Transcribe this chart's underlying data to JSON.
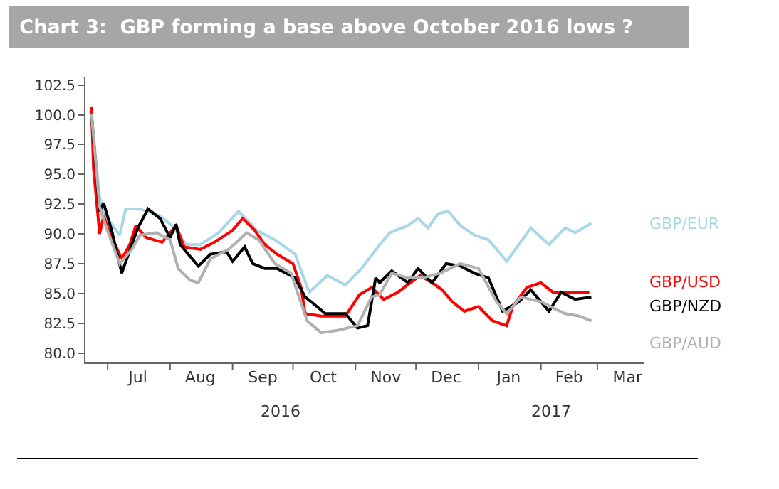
{
  "chart_data": {
    "type": "line",
    "title": "Chart 3:  GBP forming a base above October 2016 lows ?",
    "xlim": [
      "2016-06-20",
      "2017-03-24"
    ],
    "xticks": [
      {
        "value": "2016-07-01",
        "label": null
      },
      {
        "value": "2016-07-16",
        "label": "Jul"
      },
      {
        "value": "2016-08-01",
        "label": null
      },
      {
        "value": "2016-08-16",
        "label": "Aug"
      },
      {
        "value": "2016-09-01",
        "label": null
      },
      {
        "value": "2016-09-16",
        "label": "Sep"
      },
      {
        "value": "2016-10-01",
        "label": null
      },
      {
        "value": "2016-10-16",
        "label": "Oct"
      },
      {
        "value": "2016-11-01",
        "label": null
      },
      {
        "value": "2016-11-16",
        "label": "Nov"
      },
      {
        "value": "2016-12-01",
        "label": null
      },
      {
        "value": "2016-12-16",
        "label": "Dec"
      },
      {
        "value": "2017-01-01",
        "label": null
      },
      {
        "value": "2017-01-16",
        "label": "Jan"
      },
      {
        "value": "2017-02-01",
        "label": null
      },
      {
        "value": "2017-02-15",
        "label": "Feb"
      },
      {
        "value": "2017-03-01",
        "label": null
      },
      {
        "value": "2017-03-16",
        "label": "Mar"
      }
    ],
    "ylim": [
      79.2,
      103.2
    ],
    "yticks": [
      {
        "value": 80,
        "label": "80.0"
      },
      {
        "value": 82.5,
        "label": "82.5"
      },
      {
        "value": 85,
        "label": "85.0"
      },
      {
        "value": 87.5,
        "label": "87.5"
      },
      {
        "value": 90,
        "label": "90.0"
      },
      {
        "value": 92.5,
        "label": "92.5"
      },
      {
        "value": 95,
        "label": "95.0"
      },
      {
        "value": 97.5,
        "label": "97.5"
      },
      {
        "value": 100,
        "label": "100.0"
      },
      {
        "value": 102.5,
        "label": "102.5"
      }
    ],
    "grid": false,
    "legend": false,
    "marker": "none",
    "line_style": "solid",
    "annotations": [
      "2016",
      "2017"
    ],
    "series": [
      {
        "name": "GBP/EUR",
        "color": "#a8d8e8",
        "x": [
          "2016-06-23",
          "2016-06-27",
          "2016-06-30",
          "2016-07-07",
          "2016-07-10",
          "2016-07-17",
          "2016-07-27",
          "2016-08-02",
          "2016-08-09",
          "2016-08-16",
          "2016-08-25",
          "2016-09-04",
          "2016-09-13",
          "2016-09-22",
          "2016-10-02",
          "2016-10-09",
          "2016-10-18",
          "2016-10-27",
          "2016-11-04",
          "2016-11-13",
          "2016-11-18",
          "2016-11-27",
          "2016-12-02",
          "2016-12-07",
          "2016-12-12",
          "2016-12-17",
          "2016-12-23",
          "2016-12-30",
          "2017-01-06",
          "2017-01-15",
          "2017-01-21",
          "2017-01-27",
          "2017-02-05",
          "2017-02-13",
          "2017-02-18",
          "2017-02-26"
        ],
        "values": [
          99.9,
          93.1,
          91.5,
          89.9,
          92.1,
          92.1,
          91.5,
          90.7,
          89.1,
          89.1,
          90.1,
          91.9,
          90.3,
          89.5,
          88.3,
          85.1,
          86.5,
          85.7,
          87.1,
          89.1,
          90.1,
          90.7,
          91.3,
          90.5,
          91.7,
          91.9,
          90.7,
          89.9,
          89.5,
          87.7,
          89.1,
          90.5,
          89.1,
          90.5,
          90.1,
          90.9
        ]
      },
      {
        "name": "GBP/USD",
        "color": "#ff0000",
        "x": [
          "2016-06-23",
          "2016-06-24",
          "2016-06-26",
          "2016-06-27",
          "2016-06-29",
          "2016-07-02",
          "2016-07-08",
          "2016-07-12",
          "2016-07-15",
          "2016-07-20",
          "2016-07-28",
          "2016-08-04",
          "2016-08-08",
          "2016-08-16",
          "2016-08-23",
          "2016-09-01",
          "2016-09-06",
          "2016-09-12",
          "2016-09-17",
          "2016-09-23",
          "2016-10-01",
          "2016-10-05",
          "2016-10-07",
          "2016-10-15",
          "2016-10-27",
          "2016-11-03",
          "2016-11-09",
          "2016-11-15",
          "2016-11-22",
          "2016-12-03",
          "2016-12-09",
          "2016-12-14",
          "2016-12-19",
          "2016-12-25",
          "2017-01-01",
          "2017-01-08",
          "2017-01-15",
          "2017-01-18",
          "2017-01-25",
          "2017-02-01",
          "2017-02-07",
          "2017-02-15",
          "2017-02-25"
        ],
        "values": [
          100.7,
          95.5,
          91.9,
          90.0,
          91.5,
          90.1,
          87.9,
          89.1,
          90.7,
          89.7,
          89.3,
          90.7,
          88.9,
          88.7,
          89.3,
          90.3,
          91.3,
          90.3,
          89.1,
          88.3,
          87.5,
          85.5,
          83.3,
          83.1,
          83.1,
          84.9,
          85.5,
          84.5,
          85.1,
          86.5,
          85.9,
          85.3,
          84.3,
          83.5,
          83.9,
          82.7,
          82.3,
          83.9,
          85.5,
          85.9,
          85.1,
          85.1,
          85.1
        ]
      },
      {
        "name": "GBP/NZD",
        "color": "#000000",
        "x": [
          "2016-06-23",
          "2016-06-27",
          "2016-06-29",
          "2016-07-03",
          "2016-07-08",
          "2016-07-13",
          "2016-07-16",
          "2016-07-21",
          "2016-07-27",
          "2016-08-01",
          "2016-08-04",
          "2016-08-06",
          "2016-08-15",
          "2016-08-21",
          "2016-08-29",
          "2016-09-01",
          "2016-09-07",
          "2016-09-11",
          "2016-09-17",
          "2016-09-23",
          "2016-10-02",
          "2016-10-07",
          "2016-10-10",
          "2016-10-17",
          "2016-10-27",
          "2016-11-02",
          "2016-11-07",
          "2016-11-11",
          "2016-11-13",
          "2016-11-19",
          "2016-11-27",
          "2016-12-02",
          "2016-12-09",
          "2016-12-16",
          "2016-12-23",
          "2016-12-30",
          "2017-01-06",
          "2017-01-13",
          "2017-01-21",
          "2017-01-27",
          "2017-02-05",
          "2017-02-11",
          "2017-02-18",
          "2017-02-26"
        ],
        "values": [
          100.0,
          91.9,
          92.6,
          90.3,
          86.7,
          89.1,
          90.5,
          92.1,
          91.3,
          89.7,
          90.8,
          89.1,
          87.3,
          88.3,
          88.5,
          87.7,
          88.9,
          87.5,
          87.1,
          87.1,
          86.3,
          84.7,
          84.3,
          83.3,
          83.3,
          82.1,
          82.3,
          86.3,
          85.9,
          86.9,
          85.9,
          87.1,
          85.9,
          87.5,
          87.3,
          86.7,
          86.3,
          83.5,
          84.3,
          85.3,
          83.5,
          85.1,
          84.5,
          84.7
        ]
      },
      {
        "name": "GBP/AUD",
        "color": "#b0b0b0",
        "x": [
          "2016-06-23",
          "2016-06-27",
          "2016-06-30",
          "2016-07-07",
          "2016-07-13",
          "2016-07-17",
          "2016-07-25",
          "2016-08-01",
          "2016-08-05",
          "2016-08-11",
          "2016-08-15",
          "2016-08-21",
          "2016-08-30",
          "2016-09-03",
          "2016-09-08",
          "2016-09-14",
          "2016-09-22",
          "2016-09-30",
          "2016-10-08",
          "2016-10-15",
          "2016-10-23",
          "2016-11-02",
          "2016-11-09",
          "2016-11-13",
          "2016-11-19",
          "2016-11-27",
          "2016-12-04",
          "2016-12-13",
          "2016-12-23",
          "2017-01-01",
          "2017-01-10",
          "2017-01-15",
          "2017-01-22",
          "2017-02-01",
          "2017-02-08",
          "2017-02-13",
          "2017-02-20",
          "2017-02-26"
        ],
        "values": [
          100.1,
          92.3,
          90.7,
          87.5,
          88.7,
          89.9,
          90.1,
          89.5,
          87.1,
          86.1,
          85.9,
          87.9,
          88.7,
          89.3,
          90.1,
          89.5,
          87.5,
          86.7,
          82.7,
          81.7,
          81.9,
          82.3,
          84.7,
          84.9,
          86.7,
          86.3,
          86.3,
          86.7,
          87.5,
          87.1,
          84.3,
          83.3,
          84.7,
          84.3,
          83.7,
          83.3,
          83.1,
          82.7
        ]
      }
    ]
  }
}
